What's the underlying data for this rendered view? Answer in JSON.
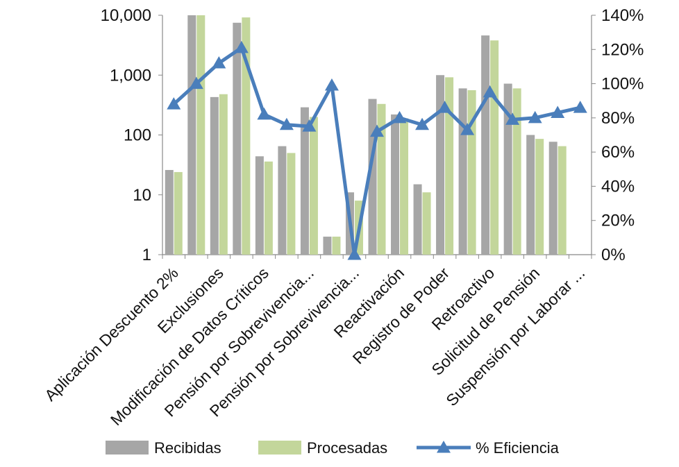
{
  "chart_data": {
    "type": "bar",
    "y_scale": "log",
    "y_ticks": [
      "1",
      "10",
      "100",
      "1,000",
      "10,000"
    ],
    "y_tick_values": [
      1,
      10,
      100,
      1000,
      10000
    ],
    "ylim": [
      1,
      10000
    ],
    "y2_ticks": [
      "0%",
      "20%",
      "40%",
      "60%",
      "80%",
      "100%",
      "120%",
      "140%"
    ],
    "y2_tick_values": [
      0,
      20,
      40,
      60,
      80,
      100,
      120,
      140
    ],
    "y2lim": [
      0,
      140
    ],
    "categories": [
      "Aplicación Descuento 2%",
      "",
      "Exclusiones",
      "",
      "Modificación de Datos Críticos",
      "",
      "Pensión por Sobrevivencia...",
      "",
      "Pensión por Sobrevivencia...",
      "",
      "Reactivación",
      "",
      "Registro de Poder",
      "",
      "Retroactivo",
      "",
      "Solicitud de Pensión",
      "",
      "Suspensión por Laborar ..."
    ],
    "series": [
      {
        "name": "Recibidas",
        "kind": "bar",
        "axis": "left",
        "color": "#a6a6a6",
        "values": [
          26,
          10000,
          430,
          7500,
          44,
          65,
          290,
          2,
          11,
          400,
          220,
          15,
          1000,
          600,
          4600,
          720,
          100,
          77,
          null
        ]
      },
      {
        "name": "Procesadas",
        "kind": "bar",
        "axis": "left",
        "color": "#c3d69b",
        "values": [
          24,
          10000,
          480,
          9200,
          36,
          50,
          200,
          2,
          8,
          330,
          190,
          11,
          920,
          560,
          3800,
          600,
          86,
          65,
          null
        ]
      },
      {
        "name": "% Eficiencia",
        "kind": "line",
        "axis": "right",
        "color": "#4a7ebb",
        "values": [
          88,
          100,
          112,
          121,
          82,
          76,
          75,
          99,
          0,
          72,
          80,
          76,
          86,
          73,
          95,
          79,
          80,
          83,
          86
        ]
      }
    ],
    "legend": {
      "position": "bottom",
      "entries": [
        "Recibidas",
        "Procesadas",
        "% Eficiencia"
      ]
    }
  }
}
